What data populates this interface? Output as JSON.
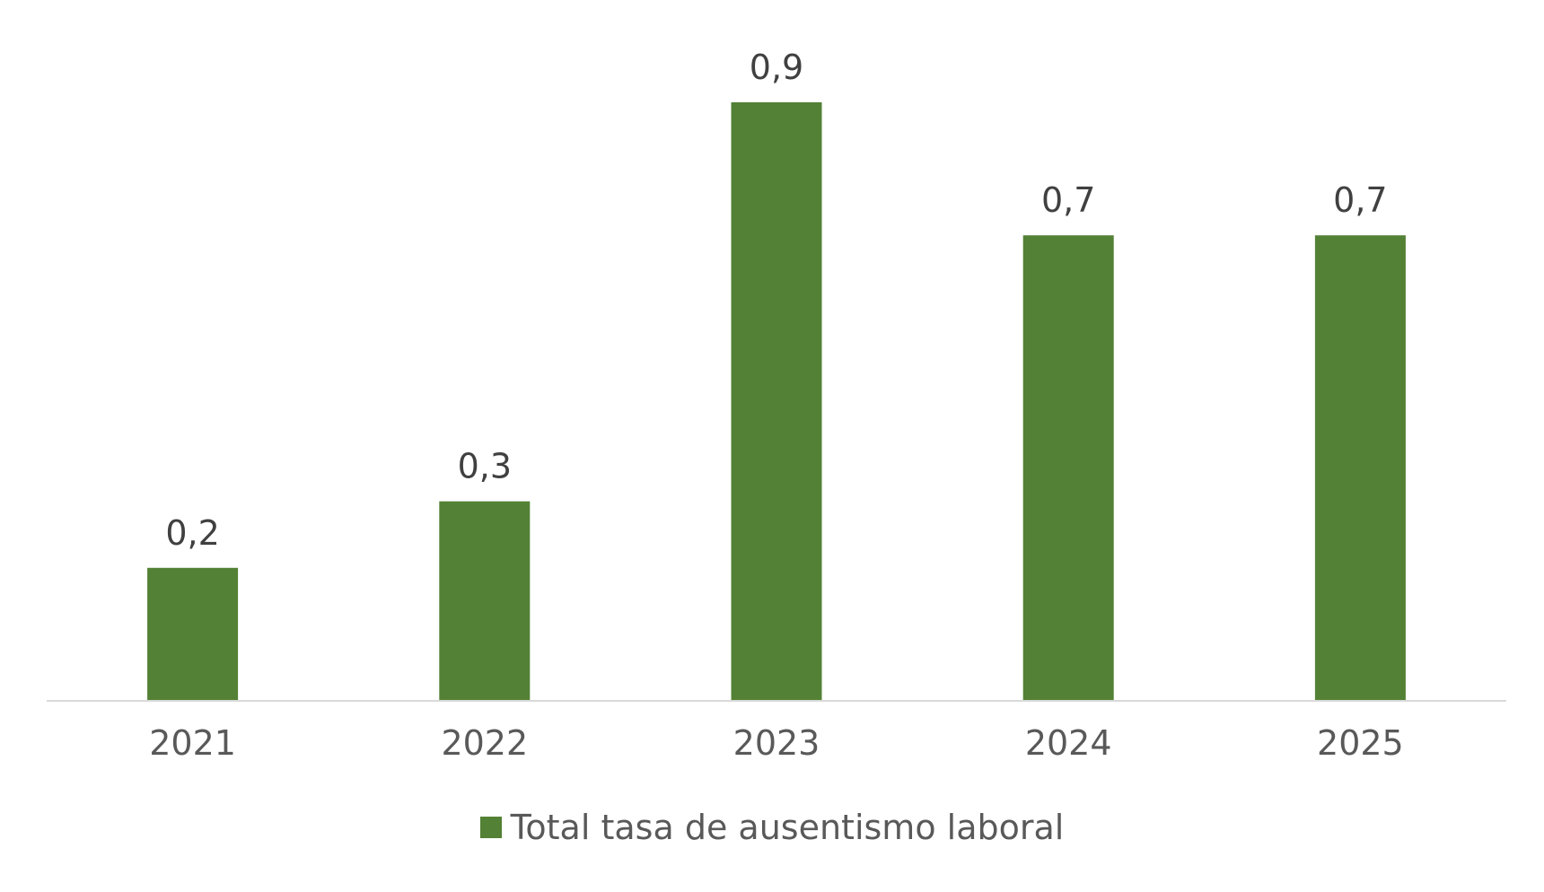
{
  "chart_data": {
    "type": "bar",
    "title": "",
    "xlabel": "",
    "ylabel": "",
    "categories": [
      "2021",
      "2022",
      "2023",
      "2024",
      "2025"
    ],
    "series": [
      {
        "name": "Total tasa de ausentismo laboral",
        "values": [
          0.2,
          0.3,
          0.9,
          0.7,
          0.7
        ],
        "data_labels": [
          "0,2",
          "0,3",
          "0,9",
          "0,7",
          "0,7"
        ]
      }
    ],
    "ylim": [
      0,
      1
    ],
    "grid": false,
    "legend_position": "bottom",
    "colors": {
      "bar": "#538135",
      "axis_line": "#d9d9d9",
      "tick_text": "#595959",
      "data_label_text": "#404040"
    }
  }
}
